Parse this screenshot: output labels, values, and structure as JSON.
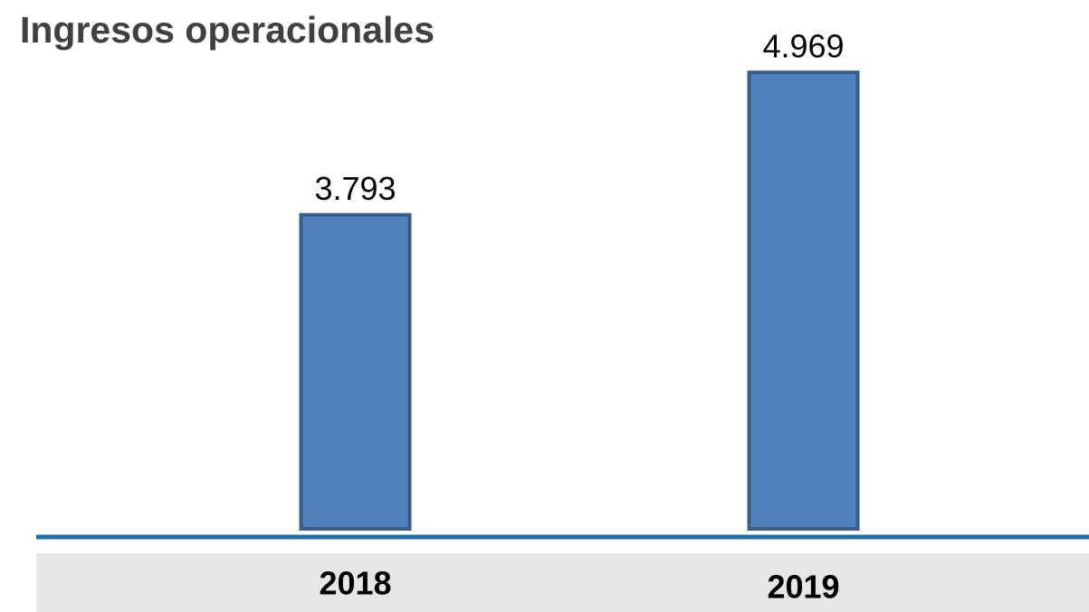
{
  "chart_data": {
    "type": "bar",
    "title": "Ingresos operacionales",
    "categories": [
      "2018",
      "2019"
    ],
    "values": [
      3793,
      4969
    ],
    "value_labels": [
      "3.793",
      "4.969"
    ],
    "color": "#4f81bd",
    "ylim": [
      1200,
      5000
    ]
  }
}
